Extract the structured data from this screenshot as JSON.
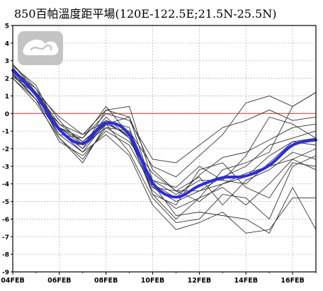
{
  "chart_data": {
    "type": "line",
    "title": "850百帕溫度距平場(120E-122.5E;21.5N-25.5N)",
    "x_dates": [
      "04FEB",
      "05FEB",
      "06FEB",
      "07FEB",
      "08FEB",
      "09FEB",
      "10FEB",
      "11FEB",
      "12FEB",
      "13FEB",
      "14FEB",
      "15FEB",
      "16FEB",
      "17FEB"
    ],
    "xticks": [
      "04FEB",
      "06FEB",
      "08FEB",
      "10FEB",
      "12FEB",
      "14FEB",
      "16FEB"
    ],
    "yticks": [
      "-9",
      "-8",
      "-7",
      "-6",
      "-5",
      "-4",
      "-3",
      "-2",
      "-1",
      "0",
      "1",
      "2",
      "3",
      "4",
      "5"
    ],
    "ylim": [
      -9,
      5
    ],
    "xlim": [
      "04FEB",
      "17FEB"
    ],
    "grid": true,
    "reference_line": {
      "value": 0,
      "color": "#e03030"
    },
    "ensemble_color": "#333333",
    "mean_color": "#2a2af0",
    "series": [
      {
        "values": [
          2.5,
          1.2,
          -0.8,
          -1.6,
          -0.6,
          -1.2,
          -3.8,
          -4.6,
          -3.8,
          -3.8,
          -4.0,
          -2.8,
          -1.6,
          -1.4
        ]
      },
      {
        "values": [
          2.6,
          1.0,
          -1.2,
          -2.2,
          -0.5,
          -1.3,
          -4.0,
          -4.8,
          -3.5,
          -2.5,
          -2.2,
          -1.5,
          -0.8,
          -0.6
        ]
      },
      {
        "values": [
          2.2,
          0.8,
          -0.6,
          -1.2,
          0.2,
          -0.2,
          -3.2,
          -4.4,
          -4.4,
          -3.6,
          -3.0,
          -1.8,
          -1.4,
          -1.0
        ]
      },
      {
        "values": [
          2.8,
          1.4,
          -0.4,
          -1.8,
          -0.2,
          -1.4,
          -4.4,
          -5.4,
          -4.8,
          -4.2,
          -5.2,
          -4.0,
          -2.6,
          -2.0
        ]
      },
      {
        "values": [
          2.0,
          0.6,
          -1.4,
          -2.6,
          -0.8,
          -1.0,
          -3.0,
          -3.6,
          -2.4,
          -1.2,
          0.6,
          1.0,
          0.4,
          1.2
        ]
      },
      {
        "values": [
          2.4,
          1.0,
          -0.8,
          -1.4,
          0.0,
          -0.4,
          -2.6,
          -2.8,
          -1.8,
          -0.8,
          -0.4,
          0.2,
          -0.4,
          -0.2
        ]
      },
      {
        "values": [
          2.7,
          1.6,
          -1.0,
          -2.0,
          -0.6,
          -2.2,
          -4.8,
          -6.2,
          -6.0,
          -4.6,
          -4.8,
          -6.0,
          -3.0,
          -2.4
        ]
      },
      {
        "values": [
          2.3,
          0.8,
          -1.6,
          -2.4,
          -1.0,
          -1.8,
          -4.2,
          -5.0,
          -4.4,
          -4.0,
          -3.4,
          -3.0,
          -2.6,
          -3.2
        ]
      },
      {
        "values": [
          2.6,
          1.2,
          -0.6,
          -1.6,
          -0.4,
          -0.8,
          -4.6,
          -6.0,
          -4.8,
          -3.2,
          -2.8,
          -2.2,
          0.4,
          1.2
        ]
      },
      {
        "values": [
          2.2,
          1.2,
          -1.0,
          -2.0,
          0.2,
          0.4,
          -3.8,
          -4.2,
          -3.0,
          -3.8,
          -2.4,
          -0.2,
          -0.6,
          -1.4
        ]
      },
      {
        "values": [
          2.8,
          1.2,
          -0.2,
          -1.2,
          -0.4,
          -1.4,
          -4.0,
          -5.8,
          -5.6,
          -5.8,
          -6.0,
          -6.8,
          -4.2,
          -6.6
        ]
      },
      {
        "values": [
          2.0,
          0.8,
          -1.2,
          -1.4,
          0.4,
          -1.2,
          -4.6,
          -5.2,
          -3.2,
          -2.8,
          -4.2,
          -4.8,
          -2.8,
          -3.0
        ]
      },
      {
        "values": [
          2.5,
          1.4,
          -1.0,
          -2.2,
          -1.2,
          -2.4,
          -5.2,
          -6.6,
          -6.2,
          -5.6,
          -6.8,
          -6.6,
          -4.8,
          -4.8
        ]
      },
      {
        "values": [
          2.6,
          1.0,
          -0.8,
          -1.8,
          -0.8,
          -1.6,
          -3.4,
          -4.4,
          -5.0,
          -4.0,
          -3.6,
          -2.4,
          -1.6,
          -1.8
        ]
      },
      {
        "values": [
          2.1,
          1.1,
          -1.4,
          -2.8,
          -0.6,
          -0.2,
          -4.2,
          -4.4,
          -3.6,
          -5.2,
          -3.8,
          -3.2,
          -2.2,
          -2.6
        ]
      }
    ],
    "mean_values": [
      2.45,
      1.05,
      -0.9,
      -1.7,
      -0.55,
      -1.2,
      -3.95,
      -4.75,
      -4.1,
      -3.65,
      -3.55,
      -2.95,
      -1.8,
      -1.5
    ]
  }
}
